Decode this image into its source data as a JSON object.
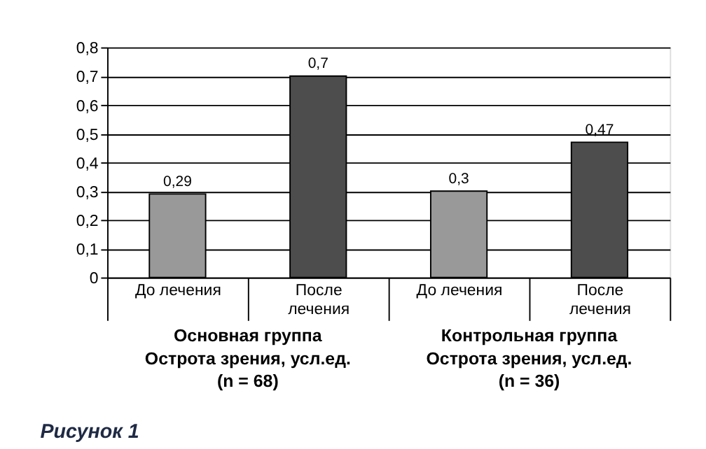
{
  "chart_data": {
    "type": "bar",
    "categories": [
      "До лечения",
      "После лечения",
      "До лечения",
      "После лечения"
    ],
    "values": [
      0.29,
      0.7,
      0.3,
      0.47
    ],
    "colors": [
      "#999999",
      "#4d4d4d",
      "#999999",
      "#4d4d4d"
    ],
    "value_labels": [
      "0,29",
      "0,7",
      "0,3",
      "0,47"
    ],
    "ylim": [
      0,
      0.8
    ],
    "yticks": [
      0,
      {
        "value": 0.1,
        "label": "0,1"
      },
      {
        "value": 0.2,
        "label": "0,2"
      },
      {
        "value": 0.3,
        "label": "0,3"
      },
      {
        "value": 0.4,
        "label": "0,4"
      },
      {
        "value": 0.5,
        "label": "0,5"
      },
      {
        "value": 0.6,
        "label": "0,6"
      },
      {
        "value": 0.7,
        "label": "0,7"
      },
      {
        "value": 0.8,
        "label": "0,8"
      }
    ],
    "grid": "y",
    "legend": false,
    "annotations": [
      "Основная группа\nОстрота зрения, усл.ед.\n(n = 68)",
      "Контрольная группа\nОстрота зрения, усл.ед.\n(n = 36)",
      "Рисунок 1"
    ]
  }
}
